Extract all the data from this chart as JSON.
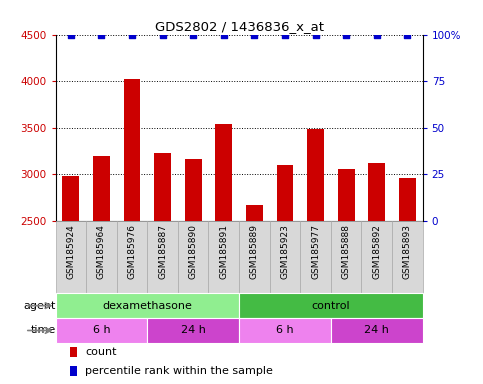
{
  "title": "GDS2802 / 1436836_x_at",
  "samples": [
    "GSM185924",
    "GSM185964",
    "GSM185976",
    "GSM185887",
    "GSM185890",
    "GSM185891",
    "GSM185889",
    "GSM185923",
    "GSM185977",
    "GSM185888",
    "GSM185892",
    "GSM185893"
  ],
  "bar_values": [
    2980,
    3200,
    4020,
    3230,
    3160,
    3540,
    2670,
    3100,
    3490,
    3060,
    3120,
    2960
  ],
  "percentile_values": [
    100,
    100,
    100,
    100,
    100,
    100,
    100,
    100,
    100,
    100,
    100,
    100
  ],
  "bar_color": "#cc0000",
  "percentile_color": "#0000cc",
  "ylim_left": [
    2500,
    4500
  ],
  "ylim_right": [
    0,
    100
  ],
  "yticks_left": [
    2500,
    3000,
    3500,
    4000,
    4500
  ],
  "yticks_right": [
    0,
    25,
    50,
    75,
    100
  ],
  "ytick_labels_right": [
    "0",
    "25",
    "50",
    "75",
    "100%"
  ],
  "agent_groups": [
    {
      "label": "dexamethasone",
      "start": 0,
      "end": 6,
      "color": "#90EE90"
    },
    {
      "label": "control",
      "start": 6,
      "end": 12,
      "color": "#44BB44"
    }
  ],
  "time_groups": [
    {
      "label": "6 h",
      "start": 0,
      "end": 3,
      "color": "#EE82EE"
    },
    {
      "label": "24 h",
      "start": 3,
      "end": 6,
      "color": "#CC44CC"
    },
    {
      "label": "6 h",
      "start": 6,
      "end": 9,
      "color": "#EE82EE"
    },
    {
      "label": "24 h",
      "start": 9,
      "end": 12,
      "color": "#CC44CC"
    }
  ],
  "bar_color_left": "#cc0000",
  "ylabel_right_color": "#0000cc",
  "agent_label": "agent",
  "time_label": "time",
  "label_fontsize": 8,
  "tick_fontsize": 7.5,
  "sample_fontsize": 6.5,
  "figsize": [
    4.83,
    3.84
  ],
  "dpi": 100,
  "xtick_bg_color": "#d8d8d8",
  "xtick_cell_edge_color": "#aaaaaa"
}
